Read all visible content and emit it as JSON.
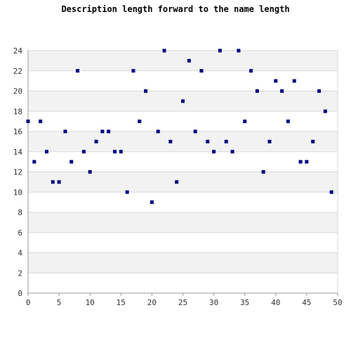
{
  "chart_data": {
    "type": "scatter",
    "title": "Description length forward to the name length",
    "xlabel": "",
    "ylabel": "",
    "xlim": [
      0,
      50
    ],
    "ylim": [
      0,
      24
    ],
    "xticks": [
      0,
      5,
      10,
      15,
      20,
      25,
      30,
      35,
      40,
      45,
      50
    ],
    "yticks": [
      0,
      2,
      4,
      6,
      8,
      10,
      12,
      14,
      16,
      18,
      20,
      22,
      24
    ],
    "grid": true,
    "legend": "none",
    "series": [
      {
        "x": [
          0,
          1,
          2,
          3,
          4,
          5,
          6,
          7,
          8,
          9,
          10,
          11,
          12,
          13,
          14,
          15,
          16,
          17,
          18,
          19,
          20,
          21,
          22,
          23,
          24,
          25,
          26,
          27,
          28,
          29,
          30,
          31,
          32,
          33,
          34,
          35,
          36,
          37,
          38,
          39,
          40,
          41,
          42,
          43,
          44,
          45,
          46,
          47,
          48,
          49
        ],
        "y": [
          17,
          13,
          17,
          14,
          11,
          11,
          16,
          13,
          22,
          14,
          12,
          15,
          16,
          16,
          14,
          14,
          10,
          22,
          17,
          20,
          9,
          16,
          24,
          15,
          11,
          19,
          23,
          16,
          22,
          15,
          14,
          24,
          15,
          14,
          24,
          17,
          22,
          20,
          12,
          15,
          21,
          20,
          17,
          21,
          13,
          13,
          15,
          20,
          18,
          10
        ]
      }
    ]
  },
  "colors": {
    "marker": "#000080",
    "band_light": "#f2f2f2",
    "band_white": "#ffffff",
    "grid": "#d9d9d9",
    "axis": "#999999"
  }
}
